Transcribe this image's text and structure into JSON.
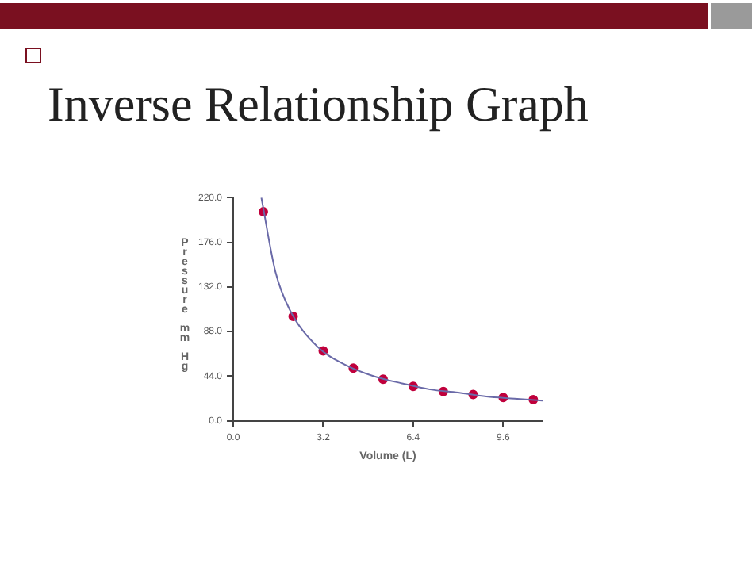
{
  "chart_data": {
    "type": "scatter",
    "title": "Inverse Relationship Graph",
    "xlabel": "Volume (L)",
    "ylabel": "Pressure mm Hg",
    "xlim": [
      0,
      11
    ],
    "xticks": [
      {
        "value": 0,
        "label": "0.0"
      },
      {
        "value": 3.2,
        "label": "3.2"
      },
      {
        "value": 6.4,
        "label": "6.4"
      },
      {
        "value": 9.6,
        "label": "9.6"
      }
    ],
    "ylim": [
      0,
      220
    ],
    "yticks": [
      {
        "value": 0,
        "label": "0.0"
      },
      {
        "value": 44,
        "label": "44.0"
      },
      {
        "value": 88,
        "label": "88.0"
      },
      {
        "value": 132,
        "label": "132.0"
      },
      {
        "value": 176,
        "label": "176.0"
      },
      {
        "value": 220,
        "label": "220.0"
      }
    ],
    "grid": false,
    "series": [
      {
        "type": "line",
        "color": "#6a6aa8",
        "marker": "none",
        "x": [
          1.0,
          1.5,
          2,
          3,
          4,
          5,
          6,
          7,
          8,
          9,
          10,
          11
        ],
        "values": [
          220,
          147,
          110,
          73,
          55,
          44,
          37,
          31,
          28,
          24,
          22,
          20
        ]
      },
      {
        "color": "#c0003c",
        "marker": "circle",
        "x": [
          1.07,
          2.13,
          3.2,
          4.27,
          5.33,
          6.4,
          7.47,
          8.53,
          9.6,
          10.67
        ],
        "values": [
          206,
          103,
          69,
          52,
          41,
          34,
          29,
          26,
          23,
          21
        ]
      }
    ]
  }
}
